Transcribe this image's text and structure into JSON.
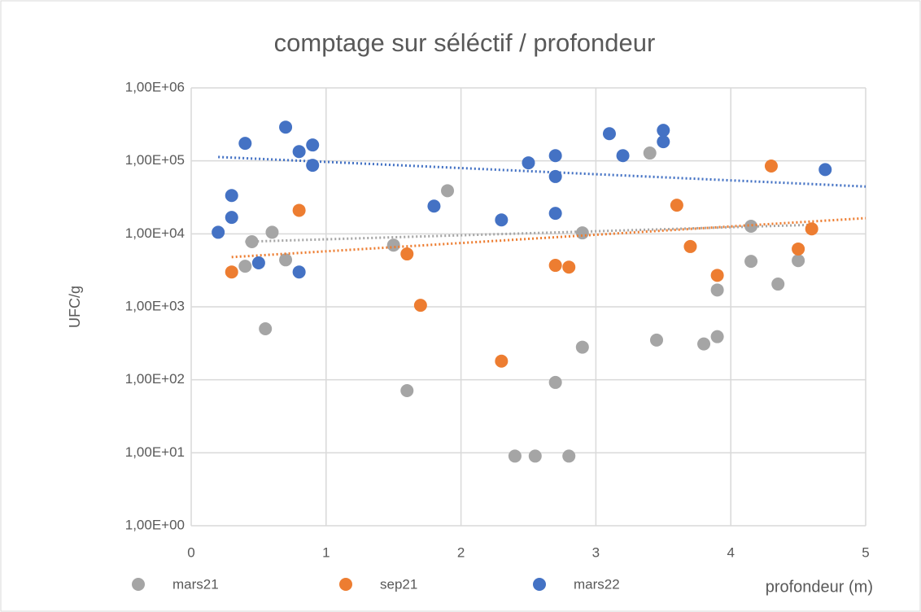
{
  "chart_data": {
    "type": "scatter",
    "title": "comptage sur séléctif / profondeur",
    "xlabel": "profondeur (m)",
    "ylabel": "UFC/g",
    "xlim": [
      0,
      5
    ],
    "xticks": [
      0,
      1,
      2,
      3,
      4,
      5
    ],
    "ylim": [
      1,
      1000000
    ],
    "log_y": true,
    "grid": true,
    "legend": "bottom",
    "yticks": [
      {
        "value": 1,
        "label": "1,00E+00"
      },
      {
        "value": 10,
        "label": "1,00E+01"
      },
      {
        "value": 100,
        "label": "1,00E+02"
      },
      {
        "value": 1000,
        "label": "1,00E+03"
      },
      {
        "value": 10000,
        "label": "1,00E+04"
      },
      {
        "value": 100000,
        "label": "1,00E+05"
      },
      {
        "value": 1000000,
        "label": "1,00E+06"
      }
    ],
    "series": [
      {
        "name": "mars21",
        "color": "#a5a5a5",
        "x": [
          0.4,
          0.45,
          0.55,
          0.6,
          0.7,
          1.5,
          1.6,
          1.9,
          2.4,
          2.55,
          2.7,
          2.8,
          2.9,
          2.9,
          3.4,
          3.45,
          3.8,
          3.9,
          3.9,
          4.15,
          4.15,
          4.35,
          4.5
        ],
        "values": [
          3600,
          7800,
          500,
          10500,
          4400,
          7000,
          71,
          39000,
          9,
          9,
          92,
          9,
          280,
          10300,
          128000,
          350,
          310,
          390,
          1700,
          12700,
          4200,
          2050,
          4300
        ],
        "trend": {
          "x": [
            0.4,
            4.6
          ],
          "values": [
            7800,
            13300
          ]
        }
      },
      {
        "name": "sep21",
        "color": "#ed7d31",
        "x": [
          0.3,
          0.8,
          1.6,
          1.7,
          2.3,
          2.7,
          2.8,
          3.6,
          3.7,
          3.9,
          4.3,
          4.5,
          4.6
        ],
        "values": [
          3000,
          21000,
          5300,
          1050,
          180,
          3700,
          3500,
          24700,
          6700,
          2700,
          85000,
          6200,
          11700
        ],
        "trend": {
          "x": [
            0.3,
            5
          ],
          "values": [
            4800,
            16400
          ]
        }
      },
      {
        "name": "mars22",
        "color": "#4472c4",
        "x": [
          0.2,
          0.3,
          0.3,
          0.4,
          0.5,
          0.7,
          0.8,
          0.8,
          0.9,
          0.9,
          1.8,
          2.3,
          2.5,
          2.7,
          2.7,
          2.7,
          3.1,
          3.2,
          3.5,
          3.5,
          4.7
        ],
        "values": [
          10500,
          33500,
          16800,
          174000,
          4000,
          290000,
          134000,
          3000,
          165000,
          87000,
          24000,
          15500,
          94000,
          118000,
          61000,
          19100,
          236000,
          118000,
          262000,
          183000,
          76000
        ],
        "trend": {
          "x": [
            0.2,
            5
          ],
          "values": [
            113000,
            44500
          ]
        }
      }
    ]
  }
}
